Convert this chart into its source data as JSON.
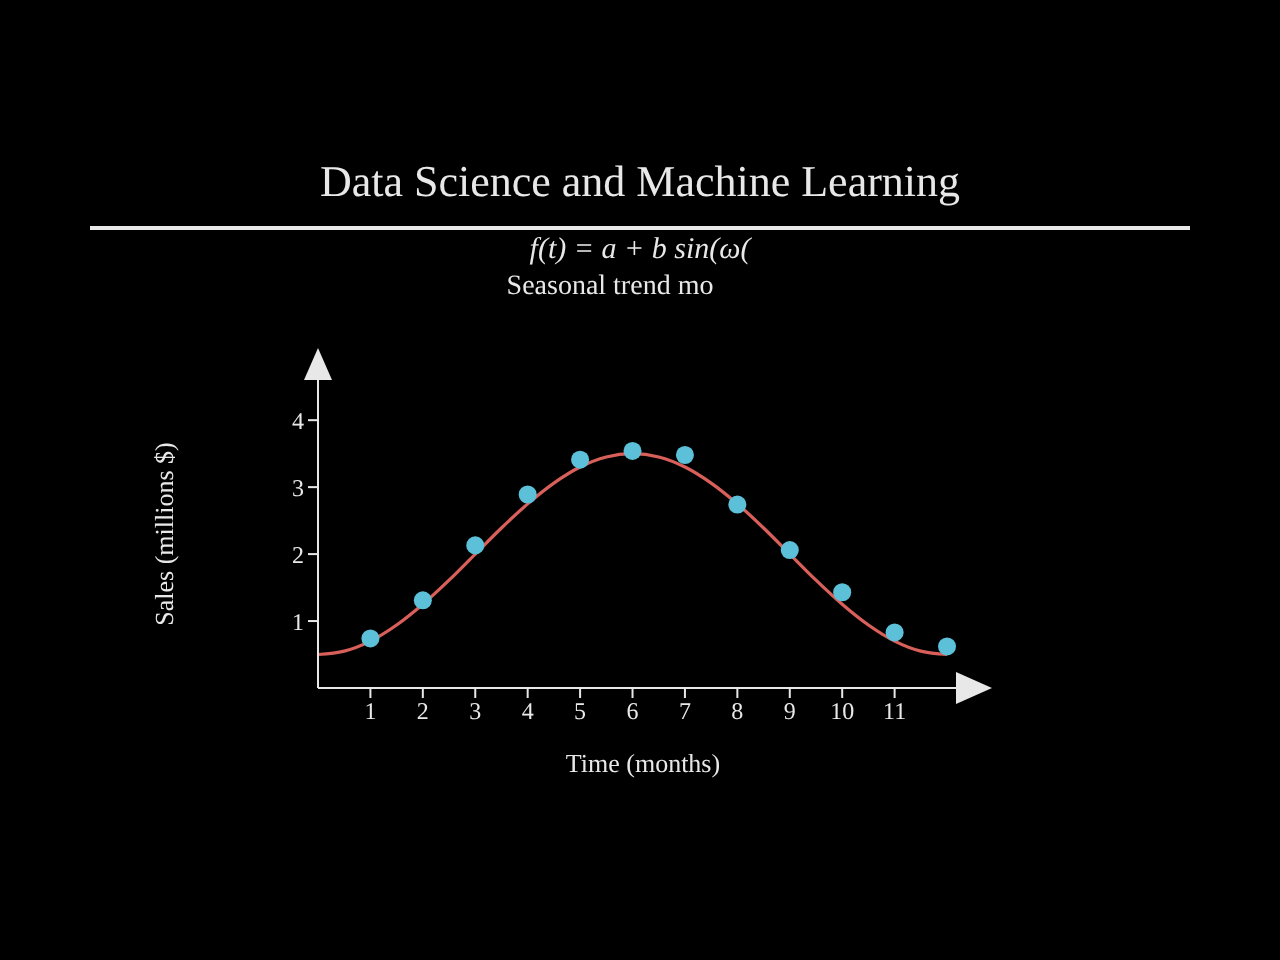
{
  "chart_data": {
    "type": "scatter",
    "title": "Data Science and Machine Learning",
    "subtitle": "f(t) = a + b sin(ω(",
    "annotations": [
      "Seasonal trend mo"
    ],
    "xlabel": "Time (months)",
    "ylabel": "Sales (millions $)",
    "series": [
      {
        "color": "#5bc0d8",
        "marker": "circle",
        "x": [
          1,
          2,
          3,
          4,
          5,
          6,
          7,
          8,
          9,
          10,
          11,
          12
        ],
        "values": [
          0.74,
          1.31,
          2.13,
          2.89,
          3.41,
          3.54,
          3.48,
          2.74,
          2.06,
          1.43,
          0.83,
          0.62
        ]
      },
      {
        "type": "line",
        "color": "#d9605a",
        "marker": "none",
        "line_style": "solid",
        "x": [
          0,
          0.5,
          1,
          1.5,
          2,
          2.5,
          3,
          3.5,
          4,
          4.5,
          5,
          5.5,
          6,
          6.5,
          7,
          7.5,
          8,
          8.5,
          9,
          9.5,
          10,
          10.5,
          11,
          11.5,
          12
        ],
        "values": [
          0.5,
          0.55,
          0.7,
          0.94,
          1.25,
          1.61,
          2,
          2.39,
          2.75,
          3.06,
          3.3,
          3.45,
          3.5,
          3.45,
          3.3,
          3.06,
          2.75,
          2.39,
          2,
          1.61,
          1.25,
          0.94,
          0.7,
          0.55,
          0.5
        ]
      }
    ],
    "xlim": [
      0,
      12.4
    ],
    "xticks": [
      1,
      2,
      3,
      4,
      5,
      6,
      7,
      8,
      9,
      10,
      11
    ],
    "ylim": [
      0,
      4.6
    ],
    "yticks": [
      1,
      2,
      3,
      4
    ],
    "grid": false
  }
}
